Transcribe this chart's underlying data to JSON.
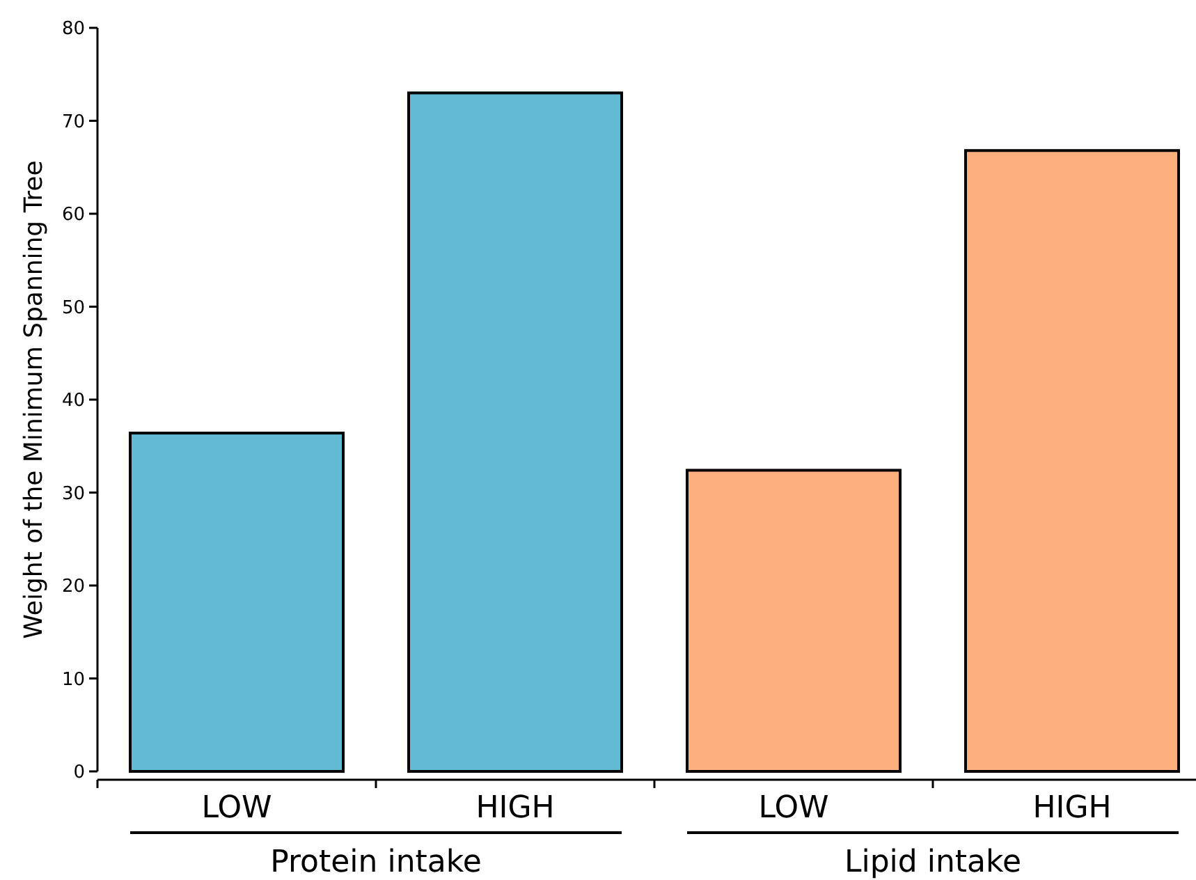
{
  "chart_data": {
    "type": "bar",
    "ylabel": "Weight of the Minimum Spanning Tree",
    "categories": [
      "LOW",
      "HIGH",
      "LOW",
      "HIGH"
    ],
    "values": [
      36.4,
      73.0,
      32.4,
      66.8
    ],
    "colors": [
      "#62bbd3",
      "#62bbd3",
      "#fdb07e",
      "#fdb07e"
    ],
    "ylim": [
      0,
      80
    ],
    "yticks": [
      0,
      10,
      20,
      30,
      40,
      50,
      60,
      70,
      80
    ],
    "grid": false,
    "annotations": [
      "Protein intake",
      "Lipid intake"
    ]
  }
}
